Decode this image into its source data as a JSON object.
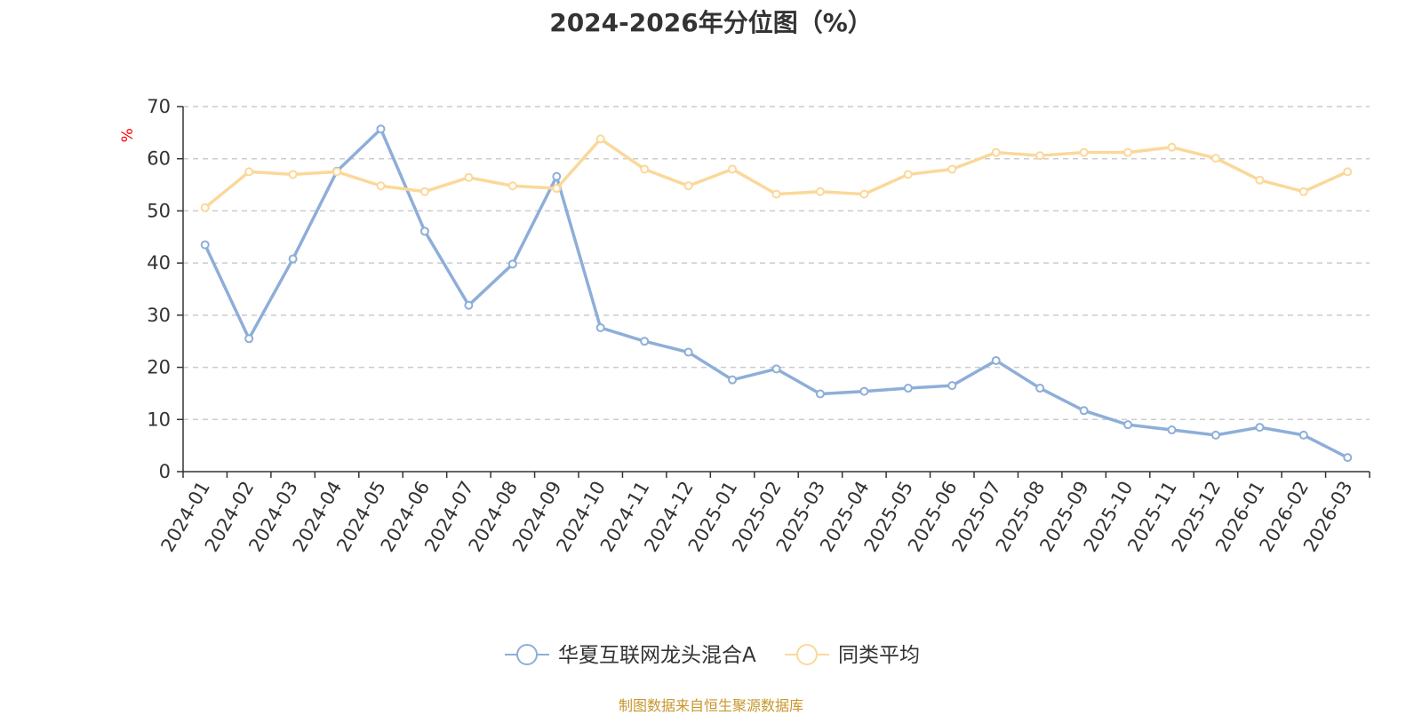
{
  "chart_data": {
    "type": "line",
    "title": "2024-2026年分位图（%）",
    "ylabel": "%",
    "xlabel": "",
    "ylim": [
      0,
      70
    ],
    "yticks": [
      0,
      10,
      20,
      30,
      40,
      50,
      60,
      70
    ],
    "grid": true,
    "legend_position": "bottom",
    "categories": [
      "2024-01",
      "2024-02",
      "2024-03",
      "2024-04",
      "2024-05",
      "2024-06",
      "2024-07",
      "2024-08",
      "2024-09",
      "2024-10",
      "2024-11",
      "2024-12",
      "2025-01",
      "2025-02",
      "2025-03",
      "2025-04",
      "2025-05",
      "2025-06",
      "2025-07",
      "2025-08",
      "2025-09",
      "2025-10",
      "2025-11",
      "2025-12",
      "2026-01",
      "2026-02",
      "2026-03"
    ],
    "series": [
      {
        "name": "华夏互联网龙头混合A",
        "color": "#8eaed9",
        "values": [
          43.5,
          25.5,
          40.8,
          57.6,
          65.7,
          46.1,
          31.9,
          39.8,
          56.6,
          27.6,
          25.0,
          22.9,
          17.6,
          19.7,
          14.9,
          15.4,
          16.0,
          16.5,
          21.3,
          16.0,
          11.7,
          9.0,
          8.0,
          7.0,
          8.5,
          7.0,
          2.7
        ]
      },
      {
        "name": "同类平均",
        "color": "#fbd89a",
        "values": [
          50.6,
          57.5,
          57.0,
          57.5,
          54.8,
          53.7,
          56.4,
          54.8,
          54.3,
          63.8,
          58.0,
          54.8,
          58.0,
          53.2,
          53.7,
          53.2,
          57.0,
          58.0,
          61.2,
          60.6,
          61.2,
          61.2,
          62.2,
          60.1,
          55.9,
          53.7,
          57.5
        ]
      }
    ]
  },
  "source_note": "制图数据来自恒生聚源数据库"
}
